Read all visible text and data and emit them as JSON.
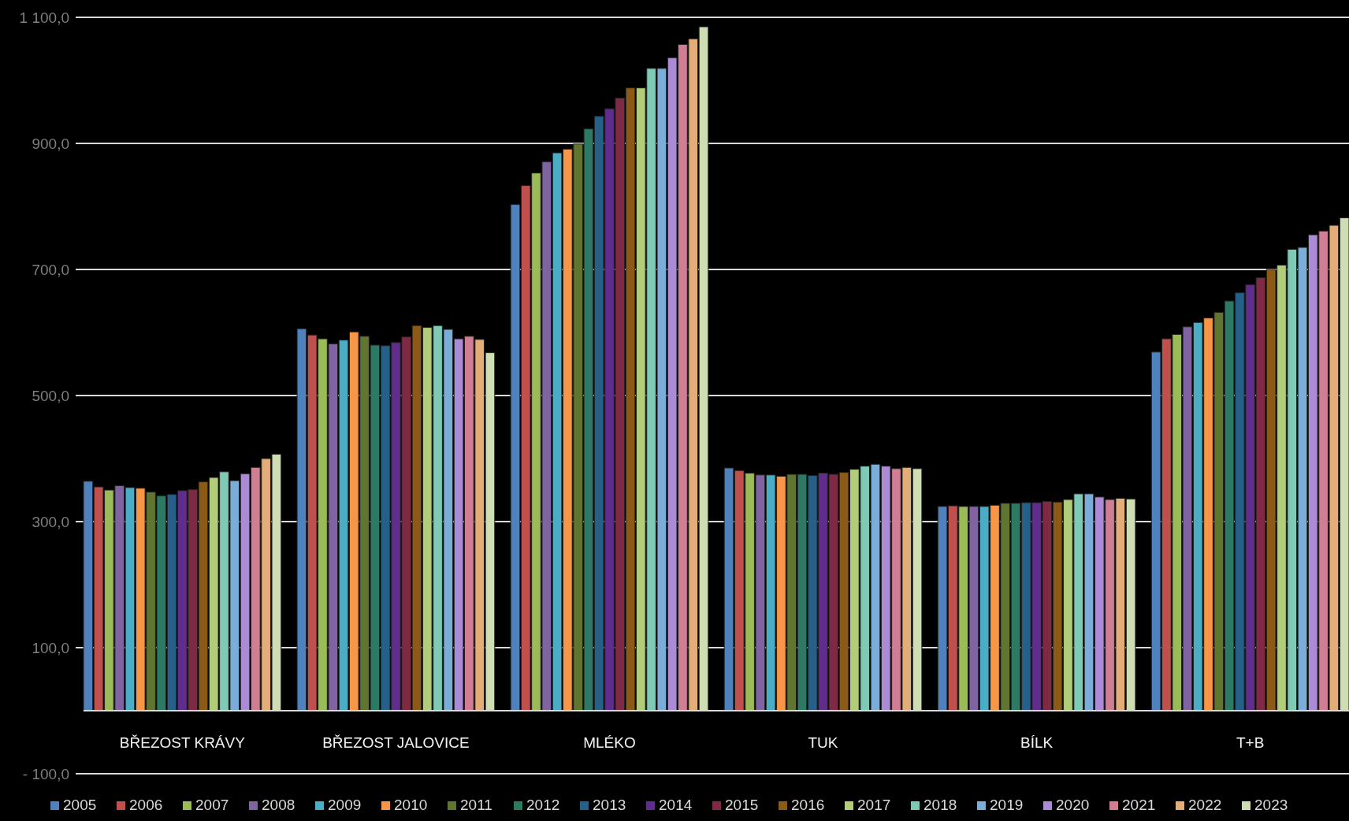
{
  "chart_data": {
    "type": "bar",
    "categories": [
      "BŘEZOST KRÁVY",
      "BŘEZOST JALOVICE",
      "MLÉKO",
      "TUK",
      "BÍLK",
      "T+B"
    ],
    "ylim": [
      -100,
      1100
    ],
    "yticks": [
      {
        "value": -100,
        "label": "- 100,0"
      },
      {
        "value": 100,
        "label": "100,0"
      },
      {
        "value": 300,
        "label": "300,0"
      },
      {
        "value": 500,
        "label": "500,0"
      },
      {
        "value": 700,
        "label": "700,0"
      },
      {
        "value": 900,
        "label": "900,0"
      },
      {
        "value": 1100,
        "label": "1 100,0"
      }
    ],
    "grid": "y",
    "legend": "bottom",
    "series": [
      {
        "name": "2005",
        "color": "#4f81bd",
        "values": [
          364,
          606,
          803,
          385,
          324,
          569
        ]
      },
      {
        "name": "2006",
        "color": "#c0504d",
        "values": [
          355,
          596,
          833,
          381,
          325,
          590
        ]
      },
      {
        "name": "2007",
        "color": "#9bbb59",
        "values": [
          350,
          590,
          853,
          377,
          324,
          597
        ]
      },
      {
        "name": "2008",
        "color": "#8064a2",
        "values": [
          357,
          582,
          871,
          374,
          324,
          609
        ]
      },
      {
        "name": "2009",
        "color": "#4bacc6",
        "values": [
          354,
          588,
          885,
          374,
          324,
          616
        ]
      },
      {
        "name": "2010",
        "color": "#f79646",
        "values": [
          353,
          601,
          891,
          372,
          326,
          623
        ]
      },
      {
        "name": "2011",
        "color": "#5f7530",
        "values": [
          347,
          594,
          899,
          375,
          329,
          632
        ]
      },
      {
        "name": "2012",
        "color": "#2c7a64",
        "values": [
          341,
          580,
          923,
          375,
          329,
          650
        ]
      },
      {
        "name": "2013",
        "color": "#265f87",
        "values": [
          343,
          579,
          943,
          373,
          330,
          663
        ]
      },
      {
        "name": "2014",
        "color": "#5f2d8c",
        "values": [
          349,
          584,
          955,
          377,
          330,
          676
        ]
      },
      {
        "name": "2015",
        "color": "#7f2a45",
        "values": [
          351,
          593,
          972,
          375,
          332,
          687
        ]
      },
      {
        "name": "2016",
        "color": "#8c5a17",
        "values": [
          363,
          611,
          988,
          378,
          331,
          700
        ]
      },
      {
        "name": "2017",
        "color": "#b2cd79",
        "values": [
          370,
          608,
          988,
          383,
          335,
          707
        ]
      },
      {
        "name": "2018",
        "color": "#7fcab5",
        "values": [
          379,
          611,
          1019,
          388,
          344,
          732
        ]
      },
      {
        "name": "2019",
        "color": "#7aaed8",
        "values": [
          365,
          605,
          1019,
          391,
          344,
          735
        ]
      },
      {
        "name": "2020",
        "color": "#ab8bd6",
        "values": [
          376,
          590,
          1036,
          388,
          339,
          755
        ]
      },
      {
        "name": "2021",
        "color": "#d17e94",
        "values": [
          386,
          594,
          1057,
          384,
          335,
          761
        ]
      },
      {
        "name": "2022",
        "color": "#e3ad77",
        "values": [
          400,
          589,
          1066,
          386,
          337,
          770
        ]
      },
      {
        "name": "2023",
        "color": "#cfdeb2",
        "values": [
          407,
          568,
          1085,
          384,
          336,
          782
        ]
      }
    ]
  }
}
